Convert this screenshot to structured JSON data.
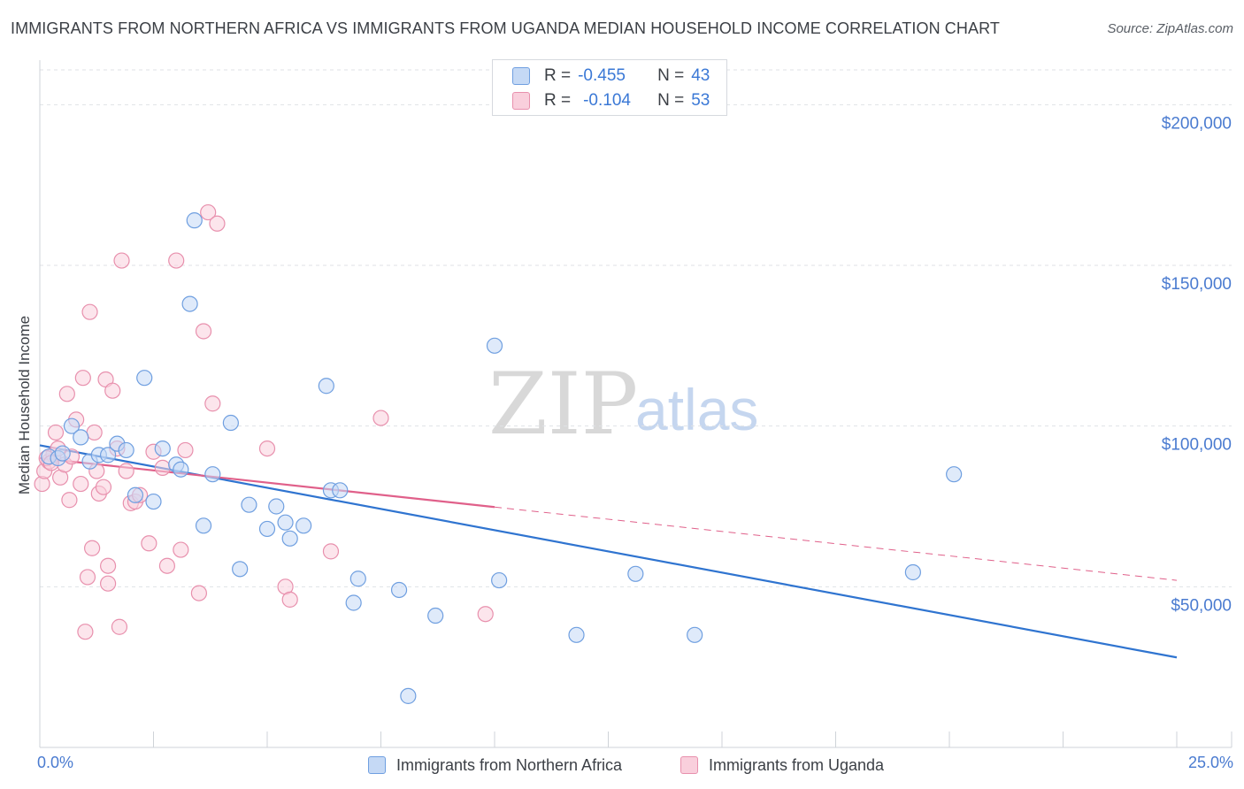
{
  "chart_data": {
    "type": "scatter",
    "title": "IMMIGRANTS FROM NORTHERN AFRICA VS IMMIGRANTS FROM UGANDA MEDIAN HOUSEHOLD INCOME CORRELATION CHART",
    "source": "Source: ZipAtlas.com",
    "ylabel": "Median Household Income",
    "xlabel": "",
    "xlim": [
      0,
      25
    ],
    "ylim": [
      0,
      210000
    ],
    "x_tick_labels": {
      "min": "0.0%",
      "max": "25.0%"
    },
    "y_ticks": [
      {
        "value": 50000,
        "label": "$50,000"
      },
      {
        "value": 100000,
        "label": "$100,000"
      },
      {
        "value": 150000,
        "label": "$150,000"
      },
      {
        "value": 200000,
        "label": "$200,000"
      }
    ],
    "legend_stats": [
      {
        "r_label": "R =",
        "r_value": "-0.455",
        "n_label": "N =",
        "n_value": "43"
      },
      {
        "r_label": "R =",
        "r_value": "-0.104",
        "n_label": "N =",
        "n_value": "53"
      }
    ],
    "series": [
      {
        "name": "Immigrants from Northern Africa",
        "color": "#6f9fe0",
        "fill": "#c5d9f5",
        "trend": {
          "x": [
            0,
            25
          ],
          "y": [
            94000,
            28000
          ],
          "color": "#2f74d0",
          "dashed_from": null
        },
        "points": [
          [
            0.2,
            90500
          ],
          [
            0.4,
            90000
          ],
          [
            0.5,
            91500
          ],
          [
            0.7,
            100000
          ],
          [
            0.9,
            96500
          ],
          [
            1.1,
            89000
          ],
          [
            1.3,
            91000
          ],
          [
            1.5,
            91000
          ],
          [
            1.7,
            94500
          ],
          [
            1.9,
            92500
          ],
          [
            2.1,
            78500
          ],
          [
            2.3,
            115000
          ],
          [
            2.5,
            76500
          ],
          [
            2.7,
            93000
          ],
          [
            3.0,
            88000
          ],
          [
            3.1,
            86500
          ],
          [
            3.3,
            138000
          ],
          [
            3.4,
            164000
          ],
          [
            3.6,
            69000
          ],
          [
            3.8,
            85000
          ],
          [
            4.2,
            101000
          ],
          [
            4.4,
            55500
          ],
          [
            4.6,
            75500
          ],
          [
            5.0,
            68000
          ],
          [
            5.2,
            75000
          ],
          [
            5.4,
            70000
          ],
          [
            5.5,
            65000
          ],
          [
            5.8,
            69000
          ],
          [
            6.3,
            112500
          ],
          [
            6.4,
            80000
          ],
          [
            6.6,
            80000
          ],
          [
            6.9,
            45000
          ],
          [
            7.0,
            52500
          ],
          [
            7.9,
            49000
          ],
          [
            8.1,
            16000
          ],
          [
            8.7,
            41000
          ],
          [
            10.0,
            125000
          ],
          [
            10.1,
            52000
          ],
          [
            11.8,
            35000
          ],
          [
            13.1,
            54000
          ],
          [
            14.4,
            35000
          ],
          [
            19.2,
            54500
          ],
          [
            20.1,
            85000
          ]
        ]
      },
      {
        "name": "Immigrants from Uganda",
        "color": "#e890ad",
        "fill": "#f9cfdc",
        "trend": {
          "x": [
            0,
            25
          ],
          "y": [
            90000,
            52000
          ],
          "color": "#e0608a",
          "dashed_from": 10.0
        },
        "points": [
          [
            0.05,
            82000
          ],
          [
            0.1,
            86000
          ],
          [
            0.2,
            89000
          ],
          [
            0.3,
            91000
          ],
          [
            0.35,
            98000
          ],
          [
            0.4,
            93000
          ],
          [
            0.45,
            84000
          ],
          [
            0.55,
            88000
          ],
          [
            0.6,
            110000
          ],
          [
            0.65,
            77000
          ],
          [
            0.7,
            90500
          ],
          [
            0.8,
            102000
          ],
          [
            0.9,
            82000
          ],
          [
            0.95,
            115000
          ],
          [
            1.0,
            36000
          ],
          [
            1.05,
            53000
          ],
          [
            1.1,
            135500
          ],
          [
            1.15,
            62000
          ],
          [
            1.2,
            98000
          ],
          [
            1.25,
            86000
          ],
          [
            1.3,
            79000
          ],
          [
            1.4,
            81000
          ],
          [
            1.45,
            114500
          ],
          [
            1.5,
            56500
          ],
          [
            1.5,
            51000
          ],
          [
            1.6,
            111000
          ],
          [
            1.7,
            93000
          ],
          [
            1.75,
            37500
          ],
          [
            1.8,
            151500
          ],
          [
            1.9,
            86000
          ],
          [
            2.0,
            76000
          ],
          [
            2.1,
            76500
          ],
          [
            2.2,
            78500
          ],
          [
            2.4,
            63500
          ],
          [
            2.5,
            92000
          ],
          [
            2.7,
            87000
          ],
          [
            2.8,
            56500
          ],
          [
            3.0,
            151500
          ],
          [
            3.1,
            61500
          ],
          [
            3.2,
            92500
          ],
          [
            3.5,
            48000
          ],
          [
            3.6,
            129500
          ],
          [
            3.7,
            166500
          ],
          [
            3.8,
            107000
          ],
          [
            3.9,
            163000
          ],
          [
            5.0,
            93000
          ],
          [
            5.4,
            50000
          ],
          [
            5.5,
            46000
          ],
          [
            6.4,
            61000
          ],
          [
            7.5,
            102500
          ],
          [
            9.8,
            41500
          ],
          [
            0.15,
            90000
          ],
          [
            0.25,
            88500
          ]
        ]
      }
    ],
    "watermark": {
      "zip": "ZIP",
      "atlas": "atlas"
    }
  }
}
